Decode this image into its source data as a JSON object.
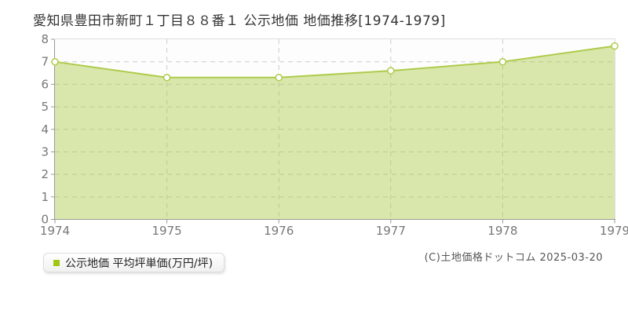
{
  "title": "愛知県豊田市新町１丁目８８番１ 公示地価 地価推移[1974-1979]",
  "legend": {
    "label": "公示地価 平均坪単価(万円/坪)",
    "marker_color": "#a2c614"
  },
  "footer": {
    "copyright": "(C)土地価格ドットコム 2025-03-20"
  },
  "chart_data": {
    "type": "area",
    "title": "愛知県豊田市新町１丁目８８番１ 公示地価 地価推移[1974-1979]",
    "x": [
      1974,
      1975,
      1976,
      1977,
      1978,
      1979
    ],
    "series": [
      {
        "name": "公示地価 平均坪単価(万円/坪)",
        "values": [
          7.0,
          6.3,
          6.3,
          6.6,
          7.0,
          7.7
        ]
      }
    ],
    "xlabel": "",
    "ylabel": "",
    "ylim": [
      0,
      8
    ],
    "yticks": [
      0,
      1,
      2,
      3,
      4,
      5,
      6,
      7,
      8
    ],
    "grid": true,
    "legend_position": "bottom-left",
    "colors": {
      "line": "#aecb4a",
      "fill": "rgba(174,203,74,0.45)",
      "marker_fill": "#ffffff",
      "grid": "#cccccc",
      "axis": "#999999",
      "border": "#dddddd",
      "tick_text": "#777777",
      "plot_bg": "#fdfdfd"
    }
  }
}
